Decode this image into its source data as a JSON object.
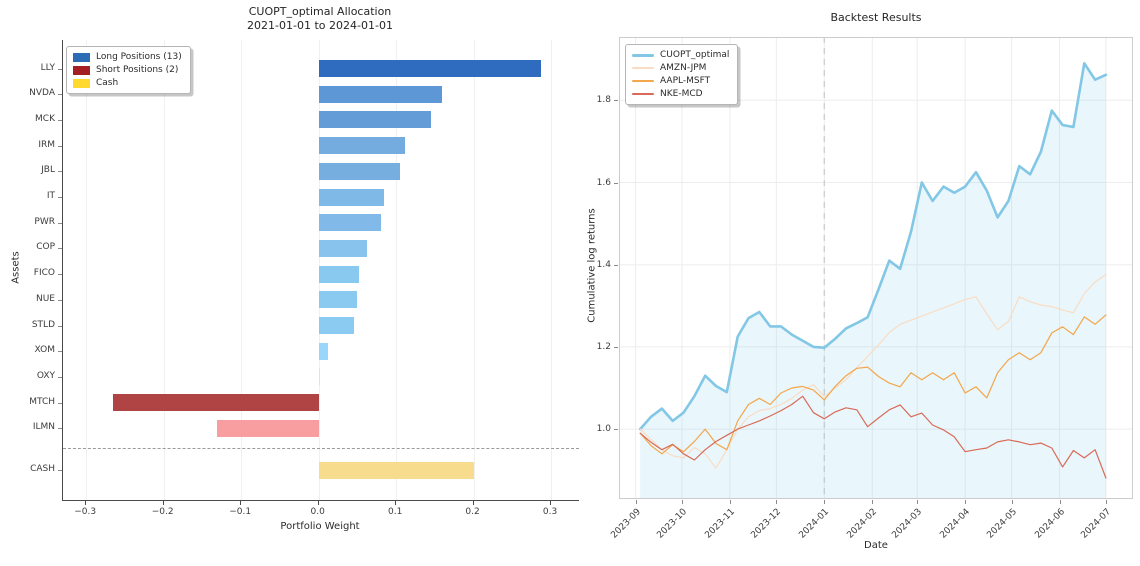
{
  "page": {
    "background": "#ffffff"
  },
  "chart_data": [
    {
      "type": "bar",
      "orientation": "horizontal",
      "title": "CUOPT_optimal Allocation",
      "subtitle": "2021-01-01 to 2024-01-01",
      "xlabel": "Portfolio Weight",
      "ylabel": "Assets",
      "xlim": [
        -0.33,
        0.336
      ],
      "grid": "vertical-light",
      "x_ticks": [
        {
          "v": -0.3,
          "label": "−0.3"
        },
        {
          "v": -0.2,
          "label": "−0.2"
        },
        {
          "v": -0.1,
          "label": "−0.1"
        },
        {
          "v": 0.0,
          "label": "0.0"
        },
        {
          "v": 0.1,
          "label": "0.1"
        },
        {
          "v": 0.2,
          "label": "0.2"
        },
        {
          "v": 0.3,
          "label": "0.3"
        }
      ],
      "legend": [
        {
          "label": "Long Positions (13)",
          "color": "#2c6cb4"
        },
        {
          "label": "Short Positions (2)",
          "color": "#a41f24"
        },
        {
          "label": "Cash",
          "color": "#ffd92f"
        }
      ],
      "bars": [
        {
          "label": "LLY",
          "value": 0.287,
          "group": "long",
          "color": "#2f6bbf"
        },
        {
          "label": "NVDA",
          "value": 0.159,
          "group": "long",
          "color": "#5e97d5"
        },
        {
          "label": "MCK",
          "value": 0.145,
          "group": "long",
          "color": "#649cd8"
        },
        {
          "label": "IRM",
          "value": 0.112,
          "group": "long",
          "color": "#74acdf"
        },
        {
          "label": "JBL",
          "value": 0.105,
          "group": "long",
          "color": "#76aee0"
        },
        {
          "label": "IT",
          "value": 0.084,
          "group": "long",
          "color": "#7fb9e8"
        },
        {
          "label": "PWR",
          "value": 0.08,
          "group": "long",
          "color": "#81bae8"
        },
        {
          "label": "COP",
          "value": 0.063,
          "group": "long",
          "color": "#87c3ed"
        },
        {
          "label": "FICO",
          "value": 0.052,
          "group": "long",
          "color": "#89c9f0"
        },
        {
          "label": "NUE",
          "value": 0.049,
          "group": "long",
          "color": "#8acaf1"
        },
        {
          "label": "STLD",
          "value": 0.046,
          "group": "long",
          "color": "#8bcbf1"
        },
        {
          "label": "XOM",
          "value": 0.012,
          "group": "long",
          "color": "#99d6f9"
        },
        {
          "label": "OXY",
          "value": 0.001,
          "group": "long",
          "color": "#c9e9fb"
        },
        {
          "label": "MTCH",
          "value": -0.266,
          "group": "short",
          "color": "#b04343"
        },
        {
          "label": "ILMN",
          "value": -0.131,
          "group": "short",
          "color": "#f89ea0"
        }
      ],
      "cash_bar": {
        "label": "CASH",
        "value": 0.2,
        "group": "cash",
        "color": "#f6dc8c"
      },
      "separator": {
        "style": "dashed",
        "color": "#9a9a9a"
      }
    },
    {
      "type": "line",
      "title": "Backtest Results",
      "xlabel": "Date",
      "ylabel": "Cumulative log returns",
      "ylim": [
        0.83,
        1.954
      ],
      "xlim_days": [
        -10.7,
        321.5
      ],
      "grid": "both-light",
      "y_ticks": [
        {
          "v": 1.0,
          "label": "1.0"
        },
        {
          "v": 1.2,
          "label": "1.2"
        },
        {
          "v": 1.4,
          "label": "1.4"
        },
        {
          "v": 1.6,
          "label": "1.6"
        },
        {
          "v": 1.8,
          "label": "1.8"
        }
      ],
      "x_ticks": [
        {
          "day": 0,
          "label": "2023-09"
        },
        {
          "day": 30,
          "label": "2023-10"
        },
        {
          "day": 61,
          "label": "2023-11"
        },
        {
          "day": 91,
          "label": "2023-12"
        },
        {
          "day": 122,
          "label": "2024-01"
        },
        {
          "day": 153,
          "label": "2024-02"
        },
        {
          "day": 182,
          "label": "2024-03"
        },
        {
          "day": 213,
          "label": "2024-04"
        },
        {
          "day": 243,
          "label": "2024-05"
        },
        {
          "day": 274,
          "label": "2024-06"
        },
        {
          "day": 304,
          "label": "2024-07"
        }
      ],
      "vline": {
        "day": 122,
        "color": "#d0d0d0",
        "style": "dashed"
      },
      "x_start_day": 3,
      "x_step_days": 7,
      "series": [
        {
          "name": "CUOPT_optimal",
          "color": "#82c7e6",
          "width": 2.6,
          "fill": "rgba(135,206,235,0.18)",
          "values": [
            1.0,
            1.03,
            1.05,
            1.02,
            1.04,
            1.08,
            1.13,
            1.105,
            1.09,
            1.225,
            1.27,
            1.285,
            1.25,
            1.25,
            1.23,
            1.215,
            1.2,
            1.198,
            1.22,
            1.245,
            1.258,
            1.272,
            1.34,
            1.41,
            1.39,
            1.48,
            1.6,
            1.555,
            1.59,
            1.575,
            1.59,
            1.625,
            1.58,
            1.515,
            1.555,
            1.64,
            1.62,
            1.675,
            1.775,
            1.74,
            1.735,
            1.89,
            1.85,
            1.862
          ]
        },
        {
          "name": "AMZN-JPM",
          "color": "#fadcc3",
          "width": 1.2,
          "fill": null,
          "values": [
            1.0,
            0.975,
            0.95,
            0.935,
            0.93,
            0.955,
            0.94,
            0.905,
            0.95,
            1.0,
            1.03,
            1.045,
            1.05,
            1.06,
            1.075,
            1.095,
            1.108,
            1.079,
            1.1,
            1.12,
            1.15,
            1.177,
            1.205,
            1.235,
            1.255,
            1.265,
            1.275,
            1.285,
            1.295,
            1.305,
            1.315,
            1.322,
            1.28,
            1.242,
            1.262,
            1.322,
            1.31,
            1.302,
            1.298,
            1.29,
            1.283,
            1.33,
            1.358,
            1.376
          ]
        },
        {
          "name": "AAPL-MSFT",
          "color": "#f3a64a",
          "width": 1.2,
          "fill": null,
          "values": [
            0.99,
            0.96,
            0.94,
            0.962,
            0.945,
            0.97,
            1.0,
            0.965,
            0.95,
            1.02,
            1.06,
            1.075,
            1.06,
            1.088,
            1.1,
            1.104,
            1.095,
            1.071,
            1.104,
            1.13,
            1.148,
            1.151,
            1.128,
            1.112,
            1.103,
            1.137,
            1.12,
            1.137,
            1.12,
            1.137,
            1.088,
            1.103,
            1.076,
            1.137,
            1.169,
            1.186,
            1.169,
            1.186,
            1.234,
            1.249,
            1.23,
            1.273,
            1.255,
            1.278
          ]
        },
        {
          "name": "NKE-MCD",
          "color": "#d96a57",
          "width": 1.2,
          "fill": null,
          "values": [
            0.99,
            0.968,
            0.95,
            0.963,
            0.94,
            0.925,
            0.95,
            0.97,
            0.985,
            1.0,
            1.01,
            1.02,
            1.032,
            1.045,
            1.06,
            1.08,
            1.04,
            1.025,
            1.042,
            1.052,
            1.047,
            1.006,
            1.027,
            1.047,
            1.059,
            1.03,
            1.039,
            1.01,
            0.998,
            0.981,
            0.945,
            0.95,
            0.954,
            0.969,
            0.974,
            0.969,
            0.962,
            0.966,
            0.954,
            0.908,
            0.948,
            0.93,
            0.95,
            0.881
          ]
        }
      ]
    }
  ]
}
